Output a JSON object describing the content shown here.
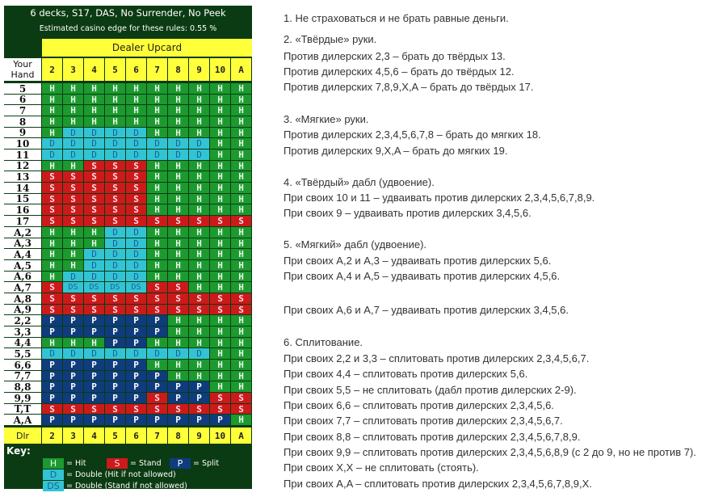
{
  "chart_data": {
    "type": "table",
    "title": "6 decks, S17, DAS, No Surrender, No Peek",
    "subtitle": "Estimated casino edge for these rules: 0.55 %",
    "column_group_header": "Dealer Upcard",
    "row_header": "Your Hand",
    "columns": [
      "2",
      "3",
      "4",
      "5",
      "6",
      "7",
      "8",
      "9",
      "10",
      "A"
    ],
    "footer_label": "Dlr",
    "rows": [
      {
        "hand": "5",
        "actions": [
          "H",
          "H",
          "H",
          "H",
          "H",
          "H",
          "H",
          "H",
          "H",
          "H"
        ]
      },
      {
        "hand": "6",
        "actions": [
          "H",
          "H",
          "H",
          "H",
          "H",
          "H",
          "H",
          "H",
          "H",
          "H"
        ]
      },
      {
        "hand": "7",
        "actions": [
          "H",
          "H",
          "H",
          "H",
          "H",
          "H",
          "H",
          "H",
          "H",
          "H"
        ]
      },
      {
        "hand": "8",
        "actions": [
          "H",
          "H",
          "H",
          "H",
          "H",
          "H",
          "H",
          "H",
          "H",
          "H"
        ]
      },
      {
        "hand": "9",
        "actions": [
          "H",
          "D",
          "D",
          "D",
          "D",
          "H",
          "H",
          "H",
          "H",
          "H"
        ]
      },
      {
        "hand": "10",
        "actions": [
          "D",
          "D",
          "D",
          "D",
          "D",
          "D",
          "D",
          "D",
          "H",
          "H"
        ]
      },
      {
        "hand": "11",
        "actions": [
          "D",
          "D",
          "D",
          "D",
          "D",
          "D",
          "D",
          "D",
          "H",
          "H"
        ]
      },
      {
        "hand": "12",
        "actions": [
          "H",
          "H",
          "S",
          "S",
          "S",
          "H",
          "H",
          "H",
          "H",
          "H"
        ]
      },
      {
        "hand": "13",
        "actions": [
          "S",
          "S",
          "S",
          "S",
          "S",
          "H",
          "H",
          "H",
          "H",
          "H"
        ]
      },
      {
        "hand": "14",
        "actions": [
          "S",
          "S",
          "S",
          "S",
          "S",
          "H",
          "H",
          "H",
          "H",
          "H"
        ]
      },
      {
        "hand": "15",
        "actions": [
          "S",
          "S",
          "S",
          "S",
          "S",
          "H",
          "H",
          "H",
          "H",
          "H"
        ]
      },
      {
        "hand": "16",
        "actions": [
          "S",
          "S",
          "S",
          "S",
          "S",
          "H",
          "H",
          "H",
          "H",
          "H"
        ]
      },
      {
        "hand": "17",
        "actions": [
          "S",
          "S",
          "S",
          "S",
          "S",
          "S",
          "S",
          "S",
          "S",
          "S"
        ]
      },
      {
        "hand": "A,2",
        "actions": [
          "H",
          "H",
          "H",
          "D",
          "D",
          "H",
          "H",
          "H",
          "H",
          "H"
        ]
      },
      {
        "hand": "A,3",
        "actions": [
          "H",
          "H",
          "H",
          "D",
          "D",
          "H",
          "H",
          "H",
          "H",
          "H"
        ]
      },
      {
        "hand": "A,4",
        "actions": [
          "H",
          "H",
          "D",
          "D",
          "D",
          "H",
          "H",
          "H",
          "H",
          "H"
        ]
      },
      {
        "hand": "A,5",
        "actions": [
          "H",
          "H",
          "D",
          "D",
          "D",
          "H",
          "H",
          "H",
          "H",
          "H"
        ]
      },
      {
        "hand": "A,6",
        "actions": [
          "H",
          "D",
          "D",
          "D",
          "D",
          "H",
          "H",
          "H",
          "H",
          "H"
        ]
      },
      {
        "hand": "A,7",
        "actions": [
          "S",
          "DS",
          "DS",
          "DS",
          "DS",
          "S",
          "S",
          "H",
          "H",
          "H"
        ]
      },
      {
        "hand": "A,8",
        "actions": [
          "S",
          "S",
          "S",
          "S",
          "S",
          "S",
          "S",
          "S",
          "S",
          "S"
        ]
      },
      {
        "hand": "A,9",
        "actions": [
          "S",
          "S",
          "S",
          "S",
          "S",
          "S",
          "S",
          "S",
          "S",
          "S"
        ]
      },
      {
        "hand": "2,2",
        "actions": [
          "P",
          "P",
          "P",
          "P",
          "P",
          "P",
          "H",
          "H",
          "H",
          "H"
        ]
      },
      {
        "hand": "3,3",
        "actions": [
          "P",
          "P",
          "P",
          "P",
          "P",
          "P",
          "H",
          "H",
          "H",
          "H"
        ]
      },
      {
        "hand": "4,4",
        "actions": [
          "H",
          "H",
          "H",
          "P",
          "P",
          "H",
          "H",
          "H",
          "H",
          "H"
        ]
      },
      {
        "hand": "5,5",
        "actions": [
          "D",
          "D",
          "D",
          "D",
          "D",
          "D",
          "D",
          "D",
          "H",
          "H"
        ]
      },
      {
        "hand": "6,6",
        "actions": [
          "P",
          "P",
          "P",
          "P",
          "P",
          "H",
          "H",
          "H",
          "H",
          "H"
        ]
      },
      {
        "hand": "7,7",
        "actions": [
          "P",
          "P",
          "P",
          "P",
          "P",
          "P",
          "H",
          "H",
          "H",
          "H"
        ]
      },
      {
        "hand": "8,8",
        "actions": [
          "P",
          "P",
          "P",
          "P",
          "P",
          "P",
          "P",
          "P",
          "H",
          "H"
        ]
      },
      {
        "hand": "9,9",
        "actions": [
          "P",
          "P",
          "P",
          "P",
          "P",
          "S",
          "P",
          "P",
          "S",
          "S"
        ]
      },
      {
        "hand": "T,T",
        "actions": [
          "S",
          "S",
          "S",
          "S",
          "S",
          "S",
          "S",
          "S",
          "S",
          "S"
        ]
      },
      {
        "hand": "A,A",
        "actions": [
          "P",
          "P",
          "P",
          "P",
          "P",
          "P",
          "P",
          "P",
          "P",
          "H"
        ]
      }
    ],
    "key": {
      "title": "Key:",
      "items": [
        {
          "code": "H",
          "label": "= Hit"
        },
        {
          "code": "S",
          "label": "= Stand"
        },
        {
          "code": "P",
          "label": "= Split"
        },
        {
          "code": "D",
          "label": "= Double (Hit if not allowed)"
        },
        {
          "code": "DS",
          "label": "= Double (Stand if not allowed)"
        }
      ]
    },
    "colors": {
      "H": "#1c9a30",
      "S": "#cc1a1a",
      "P": "#0f3c7c",
      "D": "#33c4d4",
      "DS": "#33c4d4",
      "header": "#ffff3a",
      "background": "#0b3b12"
    }
  },
  "notes": [
    "1. Не страховаться и не брать равные деньги.",
    "2. «Твёрдые» руки.",
    "Против дилерских 2,3 – брать до твёрдых 13.",
    "Против дилерских 4,5,6 – брать до твёрдых 12.",
    "Против дилерских 7,8,9,X,A – брать до твёрдых 17.",
    "3. «Мягкие» руки.",
    "Против дилерских 2,3,4,5,6,7,8 – брать до мягких 18.",
    "Против дилерских 9,X,A – брать до мягких 19.",
    "4. «Твёрдый» дабл (удвоение).",
    "При своих 10 и 11 – удваивать против дилерских 2,3,4,5,6,7,8,9.",
    "При своих 9 – удваивать против дилерских 3,4,5,6.",
    "5. «Мягкий» дабл (удвоение).",
    "При своих A,2 и A,3 – удваивать против дилерских 5,6.",
    "При своих A,4 и A,5 – удваивать против дилерских 4,5,6.",
    "При своих A,6 и A,7 – удваивать против дилерских 3,4,5,6.",
    "6. Сплитование.",
    "При своих 2,2 и 3,3 – сплитовать против дилерских 2,3,4,5,6,7.",
    "При своих 4,4 – сплитовать против дилерских 5,6.",
    "При своих 5,5 – не сплитовать (дабл против дилерских 2-9).",
    "При своих 6,6 – сплитовать против дилерских 2,3,4,5,6.",
    "При своих 7,7 – сплитовать против дилерских 2,3,4,5,6,7.",
    "При своих 8,8 – сплитовать против дилерских 2,3,4,5,6,7,8,9.",
    "При своих 9,9 – сплитовать против дилерских 2,3,4,5,6,8,9 (с 2 до 9, но не против 7).",
    "При своих X,X – не сплитовать (стоять).",
    "При своих A,A – сплитовать против дилерских 2,3,4,5,6,7,8,9,X."
  ]
}
